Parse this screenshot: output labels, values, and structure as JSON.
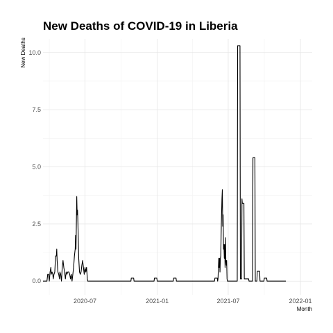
{
  "chart_data": {
    "type": "line",
    "title": "New Deaths of COVID-19 in Liberia",
    "xlabel": "Month",
    "ylabel": "New Deaths",
    "grid": true,
    "xlim": [
      "2020-03-16",
      "2022-01-31"
    ],
    "ylim": [
      -0.6,
      10.6
    ],
    "x_ticks": [
      {
        "value": "2020-07-01",
        "label": "2020-07"
      },
      {
        "value": "2021-01-01",
        "label": "2021-01"
      },
      {
        "value": "2021-07-01",
        "label": "2021-07"
      },
      {
        "value": "2022-01-01",
        "label": "2022-01"
      }
    ],
    "x_minor_ticks": [
      "2020-04-01",
      "2020-10-01",
      "2021-04-01",
      "2021-10-01"
    ],
    "y_ticks": [
      {
        "value": 0,
        "label": "0.0"
      },
      {
        "value": 2.5,
        "label": "2.5"
      },
      {
        "value": 5,
        "label": "5.0"
      },
      {
        "value": 7.5,
        "label": "7.5"
      },
      {
        "value": 10,
        "label": "10.0"
      }
    ],
    "y_minor_ticks": [
      1.25,
      3.75,
      6.25,
      8.75
    ],
    "series": [
      {
        "color": "#000000",
        "points": [
          [
            "2020-03-16",
            0
          ],
          [
            "2020-03-26",
            0
          ],
          [
            "2020-03-28",
            0.3
          ],
          [
            "2020-03-30",
            0.3
          ],
          [
            "2020-04-01",
            0
          ],
          [
            "2020-04-03",
            0.4
          ],
          [
            "2020-04-05",
            0.6
          ],
          [
            "2020-04-06",
            0.3
          ],
          [
            "2020-04-08",
            0.4
          ],
          [
            "2020-04-10",
            0.3
          ],
          [
            "2020-04-11",
            0.1
          ],
          [
            "2020-04-13",
            0.3
          ],
          [
            "2020-04-15",
            0.4
          ],
          [
            "2020-04-17",
            1.1
          ],
          [
            "2020-04-19",
            1.1
          ],
          [
            "2020-04-20",
            1.4
          ],
          [
            "2020-04-21",
            0.9
          ],
          [
            "2020-04-23",
            0.4
          ],
          [
            "2020-04-25",
            0.3
          ],
          [
            "2020-04-27",
            0.1
          ],
          [
            "2020-04-28",
            0.4
          ],
          [
            "2020-04-30",
            0.3
          ],
          [
            "2020-05-02",
            0
          ],
          [
            "2020-05-04",
            0.6
          ],
          [
            "2020-05-06",
            0.9
          ],
          [
            "2020-05-08",
            0.6
          ],
          [
            "2020-05-10",
            0.4
          ],
          [
            "2020-05-12",
            0.1
          ],
          [
            "2020-05-14",
            0.4
          ],
          [
            "2020-05-16",
            0.3
          ],
          [
            "2020-05-18",
            0.4
          ],
          [
            "2020-05-21",
            0.4
          ],
          [
            "2020-05-23",
            0.3
          ],
          [
            "2020-05-25",
            0.1
          ],
          [
            "2020-05-27",
            0.3
          ],
          [
            "2020-05-29",
            0
          ],
          [
            "2020-05-31",
            0.3
          ],
          [
            "2020-06-02",
            0.6
          ],
          [
            "2020-06-04",
            1.1
          ],
          [
            "2020-06-06",
            1.4
          ],
          [
            "2020-06-07",
            2.0
          ],
          [
            "2020-06-08",
            1.4
          ],
          [
            "2020-06-09",
            2.5
          ],
          [
            "2020-06-10",
            3.7
          ],
          [
            "2020-06-11",
            2.9
          ],
          [
            "2020-06-12",
            3.1
          ],
          [
            "2020-06-13",
            2.5
          ],
          [
            "2020-06-15",
            1.0
          ],
          [
            "2020-06-17",
            0.4
          ],
          [
            "2020-06-19",
            0.3
          ],
          [
            "2020-06-21",
            0.4
          ],
          [
            "2020-06-23",
            0.7
          ],
          [
            "2020-06-25",
            0.9
          ],
          [
            "2020-06-27",
            0.6
          ],
          [
            "2020-06-29",
            0.3
          ],
          [
            "2020-07-01",
            0.6
          ],
          [
            "2020-07-03",
            0.4
          ],
          [
            "2020-07-05",
            0.6
          ],
          [
            "2020-07-07",
            0.1
          ],
          [
            "2020-07-08",
            0
          ],
          [
            "2020-10-26",
            0
          ],
          [
            "2020-10-27",
            0.13
          ],
          [
            "2020-11-02",
            0.13
          ],
          [
            "2020-11-03",
            0
          ],
          [
            "2020-12-24",
            0
          ],
          [
            "2020-12-25",
            0.13
          ],
          [
            "2020-12-31",
            0.13
          ],
          [
            "2021-01-01",
            0
          ],
          [
            "2021-02-11",
            0
          ],
          [
            "2021-02-12",
            0.13
          ],
          [
            "2021-02-18",
            0.13
          ],
          [
            "2021-02-19",
            0
          ],
          [
            "2021-05-27",
            0
          ],
          [
            "2021-05-28",
            0.13
          ],
          [
            "2021-06-03",
            0.13
          ],
          [
            "2021-06-04",
            0
          ],
          [
            "2021-06-05",
            0.1
          ],
          [
            "2021-06-06",
            0.6
          ],
          [
            "2021-06-07",
            1.0
          ],
          [
            "2021-06-08",
            0.6
          ],
          [
            "2021-06-09",
            1.0
          ],
          [
            "2021-06-10",
            0.4
          ],
          [
            "2021-06-11",
            1.0
          ],
          [
            "2021-06-12",
            1.1
          ],
          [
            "2021-06-13",
            2.1
          ],
          [
            "2021-06-14",
            2.9
          ],
          [
            "2021-06-15",
            3.6
          ],
          [
            "2021-06-16",
            4.0
          ],
          [
            "2021-06-17",
            2.4
          ],
          [
            "2021-06-18",
            2.9
          ],
          [
            "2021-06-19",
            1.4
          ],
          [
            "2021-06-20",
            1.6
          ],
          [
            "2021-06-21",
            1.0
          ],
          [
            "2021-06-22",
            1.6
          ],
          [
            "2021-06-23",
            0.6
          ],
          [
            "2021-06-24",
            1.9
          ],
          [
            "2021-06-25",
            0.9
          ],
          [
            "2021-06-26",
            0.7
          ],
          [
            "2021-06-27",
            0.9
          ],
          [
            "2021-06-28",
            0.1
          ],
          [
            "2021-06-29",
            0
          ],
          [
            "2021-07-24",
            0
          ],
          [
            "2021-07-25",
            10.3
          ],
          [
            "2021-07-31",
            10.3
          ],
          [
            "2021-08-01",
            0.1
          ],
          [
            "2021-08-04",
            0.1
          ],
          [
            "2021-08-05",
            3.6
          ],
          [
            "2021-08-06",
            3.4
          ],
          [
            "2021-08-10",
            3.4
          ],
          [
            "2021-08-11",
            0.1
          ],
          [
            "2021-08-22",
            0.1
          ],
          [
            "2021-08-23",
            0
          ],
          [
            "2021-09-01",
            0
          ],
          [
            "2021-09-02",
            5.4
          ],
          [
            "2021-09-07",
            5.4
          ],
          [
            "2021-09-08",
            0
          ],
          [
            "2021-09-12",
            0
          ],
          [
            "2021-09-13",
            0.43
          ],
          [
            "2021-09-19",
            0.43
          ],
          [
            "2021-09-20",
            0
          ],
          [
            "2021-09-30",
            0
          ],
          [
            "2021-10-01",
            0.13
          ],
          [
            "2021-10-07",
            0.13
          ],
          [
            "2021-10-08",
            0
          ],
          [
            "2021-11-25",
            0
          ]
        ]
      }
    ]
  }
}
